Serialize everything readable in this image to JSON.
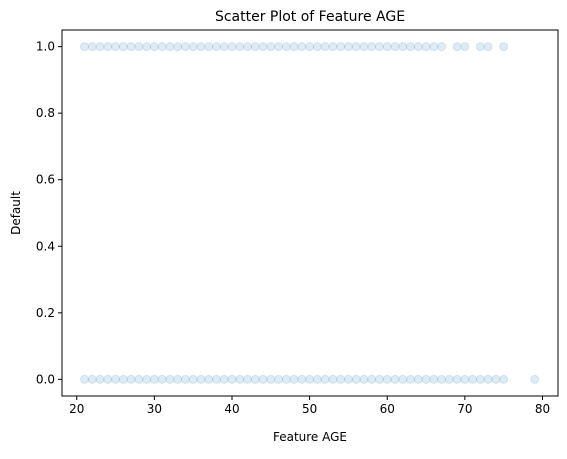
{
  "chart_data": {
    "type": "scatter",
    "title": "Scatter Plot of Feature AGE",
    "xlabel": "Feature AGE",
    "ylabel": "Default",
    "xlim": [
      18.1,
      82.0
    ],
    "ylim": [
      -0.05,
      1.05
    ],
    "xticks": [
      20,
      30,
      40,
      50,
      60,
      70,
      80
    ],
    "yticks": [
      0.0,
      0.2,
      0.4,
      0.6,
      0.8,
      1.0
    ],
    "xtick_labels": [
      "20",
      "30",
      "40",
      "50",
      "60",
      "70",
      "80"
    ],
    "ytick_labels": [
      "0.0",
      "0.2",
      "0.4",
      "0.6",
      "0.8",
      "1.0"
    ],
    "grid": false,
    "marker_color": "#1f77b4",
    "marker_alpha": 0.15,
    "series": [
      {
        "y": 1,
        "x": [
          21,
          22,
          23,
          24,
          25,
          26,
          27,
          28,
          29,
          30,
          31,
          32,
          33,
          34,
          35,
          36,
          37,
          38,
          39,
          40,
          41,
          42,
          43,
          44,
          45,
          46,
          47,
          48,
          49,
          50,
          51,
          52,
          53,
          54,
          55,
          56,
          57,
          58,
          59,
          60,
          61,
          62,
          63,
          64,
          65,
          66,
          67,
          69,
          70,
          72,
          73,
          75
        ]
      },
      {
        "y": 0,
        "x": [
          21,
          22,
          23,
          24,
          25,
          26,
          27,
          28,
          29,
          30,
          31,
          32,
          33,
          34,
          35,
          36,
          37,
          38,
          39,
          40,
          41,
          42,
          43,
          44,
          45,
          46,
          47,
          48,
          49,
          50,
          51,
          52,
          53,
          54,
          55,
          56,
          57,
          58,
          59,
          60,
          61,
          62,
          63,
          64,
          65,
          66,
          67,
          68,
          69,
          70,
          71,
          72,
          73,
          74,
          75,
          79
        ]
      }
    ]
  }
}
